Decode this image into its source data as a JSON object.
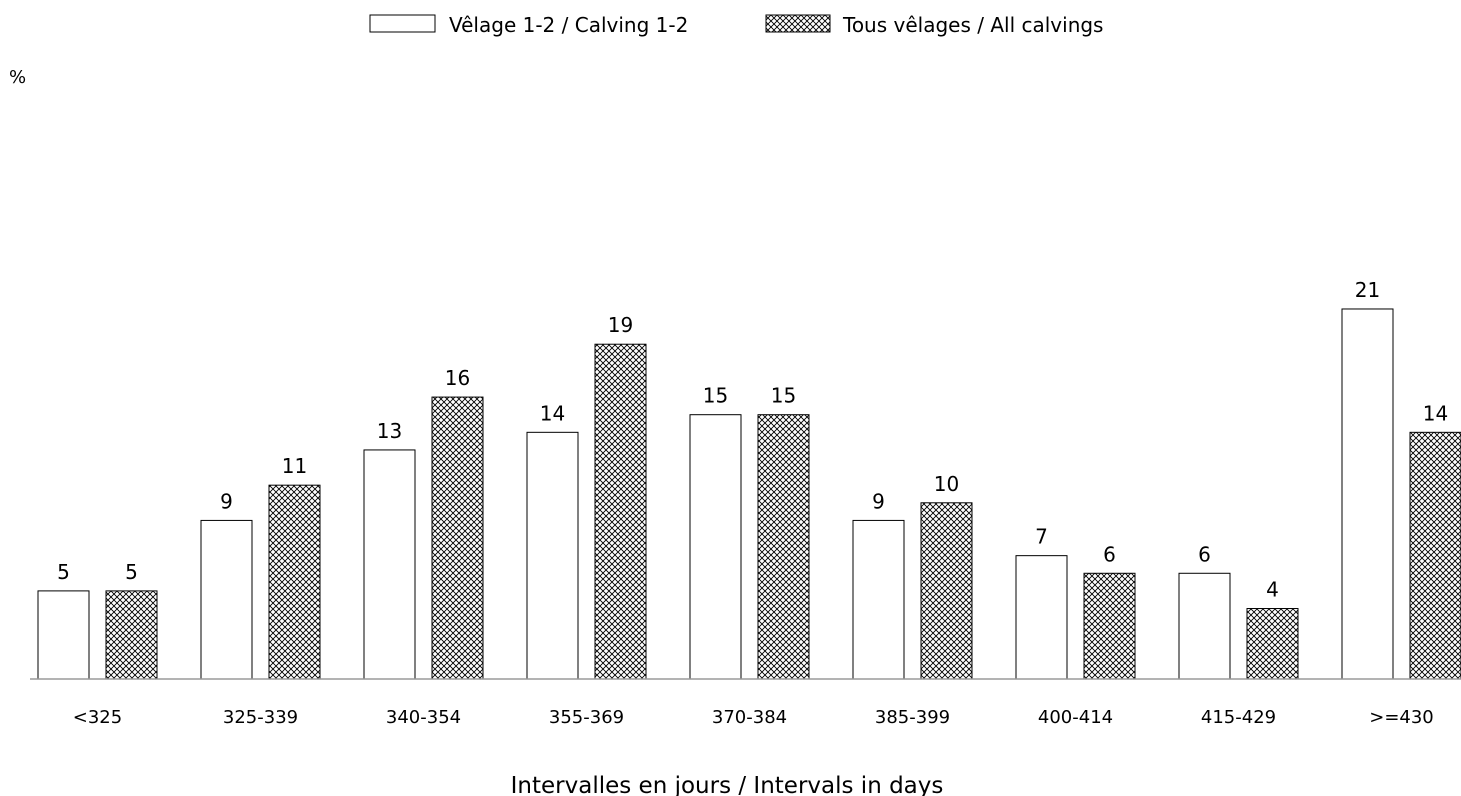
{
  "chart_data": {
    "type": "bar",
    "title": "",
    "ylabel": "%",
    "xlabel": "Intervalles en jours / Intervals in days",
    "categories": [
      "<325",
      "325-339",
      "340-354",
      "355-369",
      "370-384",
      "385-399",
      "400-414",
      "415-429",
      ">=430"
    ],
    "series": [
      {
        "name": "Vêlage 1-2 / Calving 1-2",
        "pattern": "none",
        "values": [
          5,
          9,
          13,
          14,
          15,
          9,
          7,
          6,
          21
        ],
        "labels": [
          "5",
          "9",
          "13",
          "14",
          "15",
          "9",
          "7",
          "6",
          "21"
        ]
      },
      {
        "name": "Tous vêlages / All calvings",
        "pattern": "crosshatch",
        "values": [
          5,
          11,
          16,
          19,
          15,
          10,
          6,
          4,
          14
        ],
        "labels": [
          "5",
          "11",
          "16",
          "19",
          "15",
          "10",
          "6",
          "4",
          "14"
        ]
      }
    ],
    "ylim": [
      0,
      22
    ],
    "grid": false,
    "legend": "top-center",
    "colors": {
      "bar_fill": "#ffffff",
      "bar_stroke": "#000000",
      "axis": "#9a9a9a"
    }
  }
}
